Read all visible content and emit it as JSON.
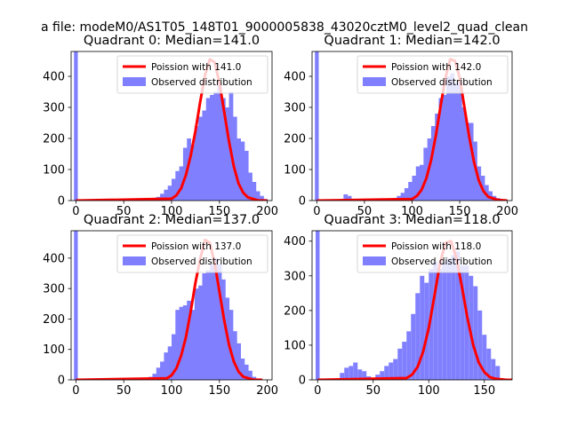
{
  "figure": {
    "suptitle": "a file: modeM0/AS1T05_148T01_9000005838_43020cztM0_level2_quad_clean"
  },
  "colors": {
    "histogram": "#8080ff",
    "poisson": "#ff0000",
    "axes": "#000000",
    "background": "#ffffff"
  },
  "chart_data": [
    {
      "type": "bar",
      "title": "Quadrant 0: Median=141.0",
      "xlim": [
        -5,
        205
      ],
      "ylim": [
        0,
        480
      ],
      "xticks": [
        0,
        50,
        100,
        150,
        200
      ],
      "yticks": [
        0,
        100,
        200,
        300,
        400
      ],
      "bin_width": 4,
      "median": 141.0,
      "spike": {
        "x": 0,
        "value": 480
      },
      "hist": {
        "x": [
          80,
          84,
          88,
          92,
          96,
          100,
          104,
          108,
          112,
          116,
          120,
          124,
          128,
          132,
          136,
          140,
          144,
          148,
          152,
          156,
          160,
          164,
          168,
          172,
          176,
          180,
          184,
          188,
          192,
          196
        ],
        "values": [
          5,
          12,
          22,
          35,
          48,
          70,
          95,
          110,
          170,
          200,
          180,
          240,
          270,
          290,
          330,
          340,
          350,
          380,
          330,
          300,
          350,
          270,
          200,
          190,
          160,
          90,
          60,
          30,
          15,
          5
        ]
      },
      "poisson": {
        "x": [
          0,
          100,
          105,
          110,
          115,
          120,
          125,
          130,
          135,
          140,
          145,
          150,
          155,
          160,
          165,
          170,
          175,
          180,
          190,
          200
        ],
        "values": [
          0,
          6,
          17,
          40,
          82,
          145,
          225,
          320,
          405,
          455,
          445,
          380,
          285,
          190,
          110,
          55,
          25,
          10,
          1,
          0
        ]
      },
      "legend": {
        "line": "Poission with 141.0",
        "hist": "Observed distribution"
      }
    },
    {
      "type": "bar",
      "title": "Quadrant 1: Median=142.0",
      "xlim": [
        -5,
        205
      ],
      "ylim": [
        0,
        480
      ],
      "xticks": [
        0,
        50,
        100,
        150,
        200
      ],
      "yticks": [
        0,
        100,
        200,
        300,
        400
      ],
      "bin_width": 4,
      "median": 142.0,
      "spike": {
        "x": 0,
        "value": 480
      },
      "hist": {
        "x": [
          28,
          32,
          36,
          40,
          76,
          80,
          84,
          88,
          92,
          96,
          100,
          104,
          108,
          112,
          116,
          120,
          124,
          128,
          132,
          136,
          140,
          144,
          148,
          152,
          156,
          160,
          164,
          168,
          172,
          176,
          180,
          184,
          188,
          192
        ],
        "values": [
          20,
          15,
          5,
          3,
          5,
          8,
          15,
          25,
          40,
          60,
          80,
          110,
          115,
          170,
          200,
          240,
          280,
          330,
          340,
          400,
          410,
          380,
          380,
          300,
          250,
          250,
          190,
          110,
          80,
          50,
          30,
          15,
          8,
          3
        ]
      },
      "poisson": {
        "x": [
          0,
          100,
          105,
          110,
          115,
          120,
          125,
          130,
          135,
          140,
          145,
          150,
          155,
          160,
          165,
          170,
          175,
          180,
          190,
          200
        ],
        "values": [
          0,
          5,
          15,
          35,
          72,
          130,
          210,
          305,
          395,
          455,
          450,
          395,
          300,
          205,
          125,
          65,
          30,
          12,
          2,
          0
        ]
      },
      "legend": {
        "line": "Poission with 142.0",
        "hist": "Observed distribution"
      }
    },
    {
      "type": "bar",
      "title": "Quadrant 2: Median=137.0",
      "xlim": [
        -5,
        205
      ],
      "ylim": [
        0,
        490
      ],
      "xticks": [
        0,
        50,
        100,
        150,
        200
      ],
      "yticks": [
        0,
        100,
        200,
        300,
        400
      ],
      "bin_width": 4,
      "median": 137.0,
      "spike": {
        "x": 0,
        "value": 490
      },
      "hist": {
        "x": [
          76,
          80,
          84,
          88,
          92,
          96,
          100,
          104,
          108,
          112,
          116,
          120,
          124,
          128,
          132,
          136,
          140,
          144,
          148,
          152,
          156,
          160,
          164,
          168,
          172,
          176,
          180,
          184
        ],
        "values": [
          10,
          20,
          40,
          60,
          90,
          110,
          150,
          230,
          240,
          245,
          260,
          230,
          300,
          310,
          350,
          360,
          380,
          400,
          380,
          330,
          270,
          230,
          160,
          120,
          70,
          50,
          30,
          10
        ]
      },
      "poisson": {
        "x": [
          0,
          95,
          100,
          105,
          110,
          115,
          120,
          125,
          130,
          135,
          140,
          145,
          150,
          155,
          160,
          165,
          170,
          175,
          185,
          195
        ],
        "values": [
          0,
          5,
          15,
          38,
          80,
          140,
          225,
          320,
          400,
          460,
          450,
          385,
          290,
          195,
          115,
          60,
          27,
          10,
          1,
          0
        ]
      },
      "legend": {
        "line": "Poission with 137.0",
        "hist": "Observed distribution"
      }
    },
    {
      "type": "bar",
      "title": "Quadrant 3: Median=118.0",
      "xlim": [
        -5,
        175
      ],
      "ylim": [
        0,
        430
      ],
      "xticks": [
        0,
        50,
        100,
        150
      ],
      "yticks": [
        0,
        100,
        200,
        300,
        400
      ],
      "bin_width": 3.6,
      "median": 118.0,
      "spike": {
        "x": 0,
        "value": 430
      },
      "hist": {
        "x": [
          20,
          24,
          28,
          32,
          36,
          40,
          44,
          48,
          52,
          56,
          60,
          64,
          68,
          72,
          76,
          80,
          84,
          88,
          92,
          96,
          100,
          104,
          108,
          112,
          116,
          120,
          124,
          128,
          132,
          136,
          140,
          144,
          148,
          152,
          156,
          160
        ],
        "values": [
          20,
          35,
          40,
          50,
          30,
          25,
          10,
          5,
          15,
          25,
          40,
          50,
          60,
          90,
          110,
          140,
          190,
          250,
          300,
          280,
          320,
          340,
          320,
          340,
          350,
          360,
          370,
          330,
          330,
          300,
          270,
          200,
          130,
          90,
          60,
          40
        ]
      },
      "poisson": {
        "x": [
          0,
          80,
          85,
          90,
          95,
          100,
          105,
          110,
          115,
          120,
          125,
          130,
          135,
          140,
          145,
          150,
          155,
          160,
          170,
          175
        ],
        "values": [
          0,
          5,
          15,
          38,
          82,
          150,
          240,
          335,
          395,
          400,
          350,
          265,
          175,
          100,
          50,
          22,
          8,
          3,
          0,
          0
        ]
      },
      "legend": {
        "line": "Poission with 118.0",
        "hist": "Observed distribution"
      }
    }
  ]
}
